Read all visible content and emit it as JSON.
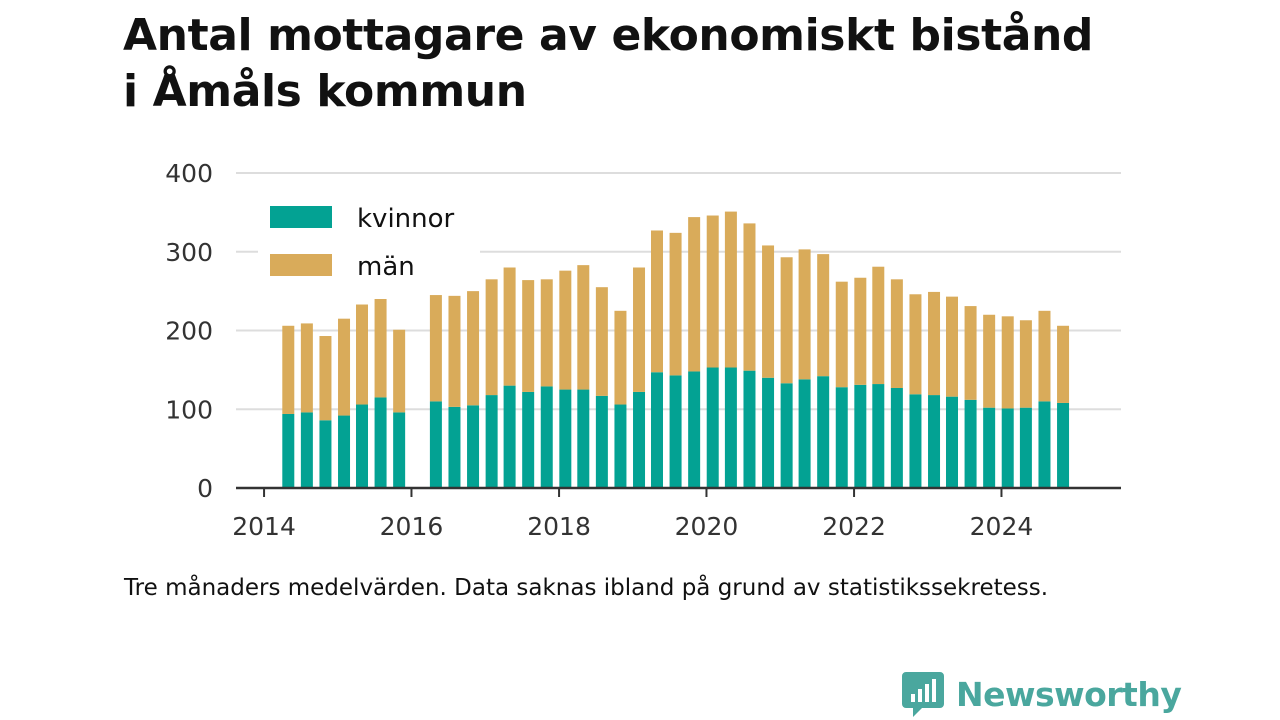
{
  "title": {
    "line1": "Antal mottagare av ekonomiskt bistånd",
    "line2": "i Åmåls kommun"
  },
  "caption": "Tre månaders medelvärden. Data saknas ibland på grund av statistikssekretess.",
  "brand": {
    "name": "Newsworthy",
    "icon": "newsworthy-logo-icon",
    "color": "#4aa79e"
  },
  "colors": {
    "kvinnor": "#03a293",
    "man": "#d9ab5a",
    "grid": "#dddddd",
    "axis": "#333333"
  },
  "chart_data": {
    "type": "bar",
    "stacked": true,
    "title": "",
    "xlabel": "",
    "ylabel": "",
    "ylim": [
      0,
      400
    ],
    "yticks": [
      0,
      100,
      200,
      300,
      400
    ],
    "xticks": [
      "2014",
      "2016",
      "2018",
      "2020",
      "2022",
      "2024"
    ],
    "xlim": [
      "2013-08-15",
      "2025-08-15"
    ],
    "grid": true,
    "legend_position": "top-left",
    "x": [
      "2014-05-01",
      "2014-08-01",
      "2014-11-01",
      "2015-02-01",
      "2015-05-01",
      "2015-08-01",
      "2015-11-01",
      "2016-05-01",
      "2016-08-01",
      "2016-11-01",
      "2017-02-01",
      "2017-05-01",
      "2017-08-01",
      "2017-11-01",
      "2018-02-01",
      "2018-05-01",
      "2018-08-01",
      "2018-11-01",
      "2019-02-01",
      "2019-05-01",
      "2019-08-01",
      "2019-11-01",
      "2020-02-01",
      "2020-05-01",
      "2020-08-01",
      "2020-11-01",
      "2021-02-01",
      "2021-05-01",
      "2021-08-01",
      "2021-11-01",
      "2022-02-01",
      "2022-05-01",
      "2022-08-01",
      "2022-11-01",
      "2023-02-01",
      "2023-05-01",
      "2023-08-01",
      "2023-11-01",
      "2024-02-01",
      "2024-05-01",
      "2024-08-01",
      "2024-11-01"
    ],
    "series": [
      {
        "name": "kvinnor",
        "values": [
          94,
          96,
          86,
          92,
          106,
          115,
          96,
          110,
          103,
          105,
          118,
          130,
          122,
          129,
          125,
          125,
          117,
          106,
          122,
          147,
          143,
          148,
          153,
          153,
          149,
          140,
          133,
          138,
          142,
          128,
          131,
          132,
          127,
          119,
          118,
          116,
          112,
          102,
          101,
          102,
          110,
          108
        ]
      },
      {
        "name": "män",
        "values": [
          112,
          113,
          107,
          123,
          127,
          125,
          105,
          135,
          141,
          145,
          147,
          150,
          142,
          136,
          151,
          158,
          138,
          119,
          158,
          180,
          181,
          196,
          193,
          198,
          187,
          168,
          160,
          165,
          155,
          134,
          136,
          149,
          138,
          127,
          131,
          127,
          119,
          118,
          117,
          111,
          115,
          98
        ]
      }
    ]
  }
}
